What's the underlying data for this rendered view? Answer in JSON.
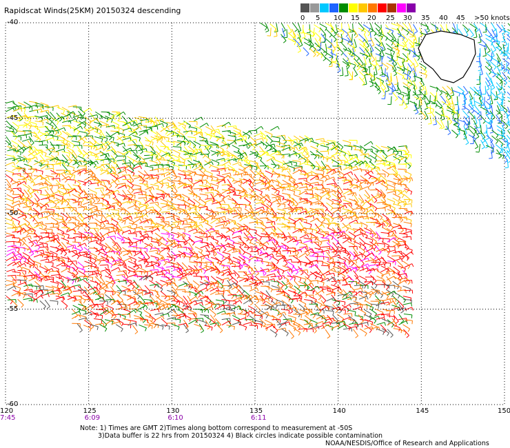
{
  "title": "Rapidscat Winds(25KM) 20150324 descending",
  "legend": {
    "colors": [
      "#555555",
      "#999999",
      "#00c8ff",
      "#1e64ff",
      "#008c00",
      "#ffff00",
      "#ffc800",
      "#ff7800",
      "#ff0000",
      "#aa3300",
      "#ff00ff",
      "#8800aa"
    ],
    "labels": [
      "0",
      "5",
      "10",
      "15",
      "20",
      "25",
      "30",
      "35",
      "40",
      "45",
      ">50 knots"
    ]
  },
  "map": {
    "lon_ticks": [
      "120",
      "125",
      "130",
      "135",
      "140",
      "145",
      "150"
    ],
    "lat_ticks": [
      "-40",
      "-45",
      "-50",
      "-55",
      "-60"
    ],
    "pass_times": [
      "7:45",
      "6:09",
      "6:10",
      "6:11"
    ],
    "land": "Tasmania"
  },
  "notes": [
    "Note: 1) Times are GMT 2)Times along bottom correspond to measurement at -50S",
    "3)Data buffer is 22 hrs from 20150324 4) Black circles indicate possible contamination"
  ],
  "credit": "NOAA/NESDIS/Office of Research and Applications"
}
